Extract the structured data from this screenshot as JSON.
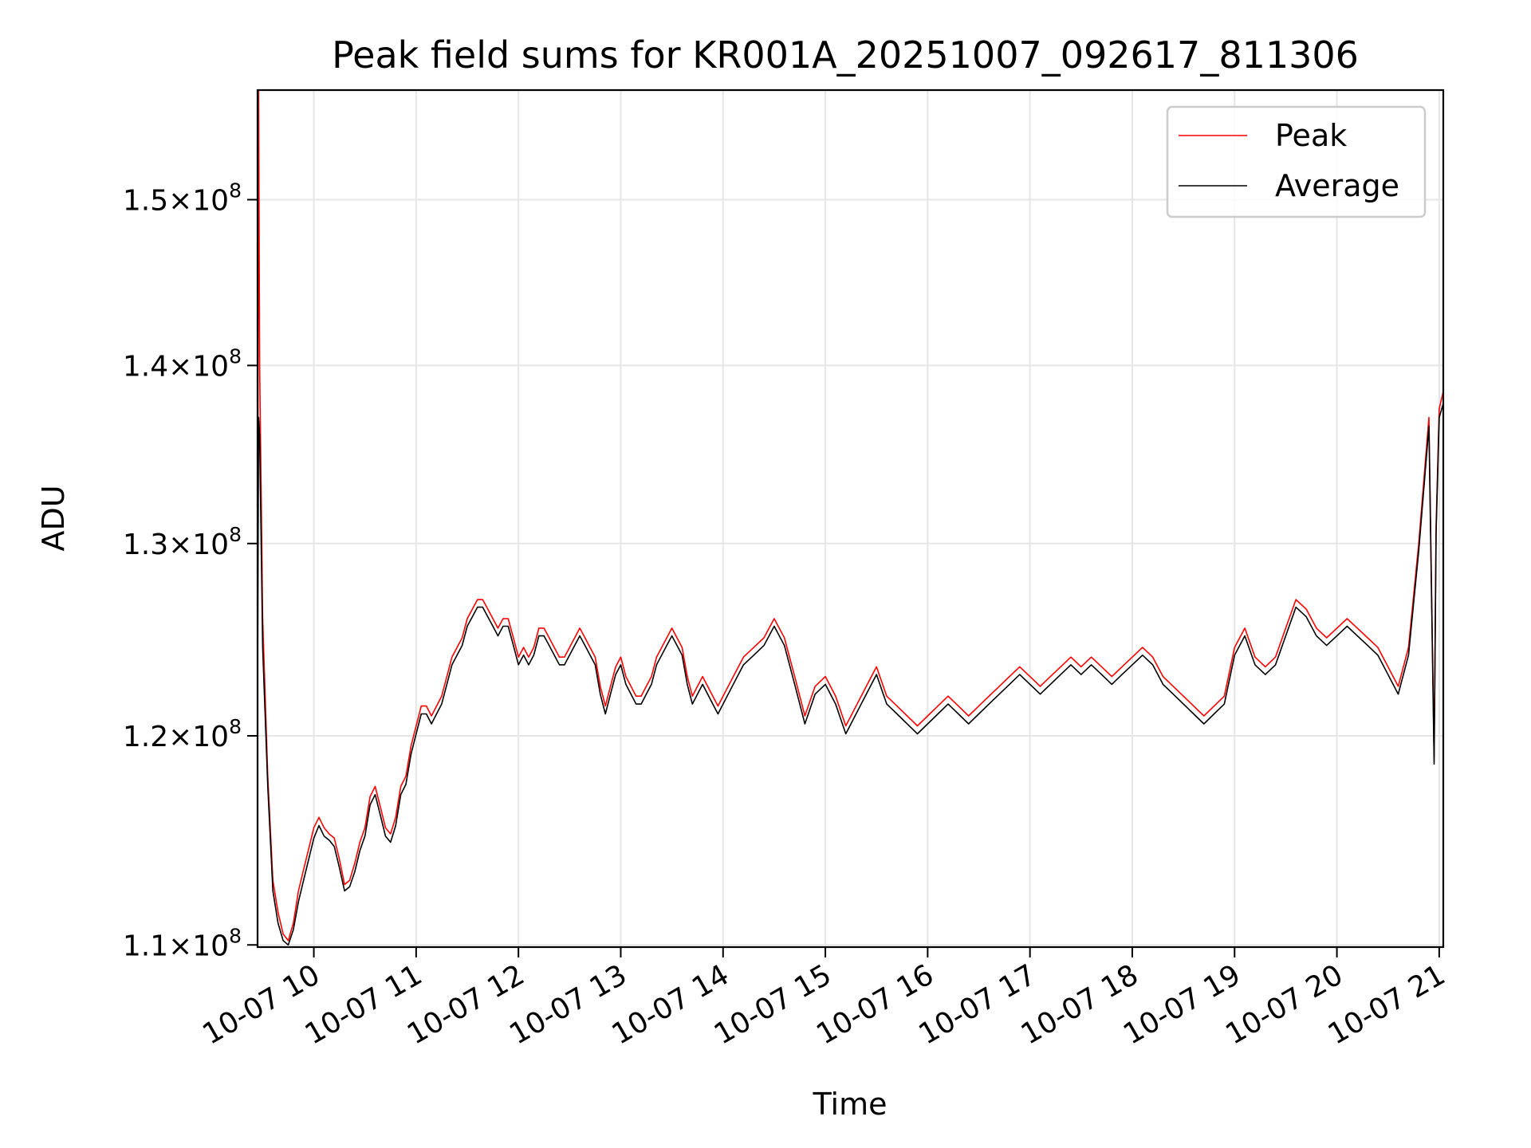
{
  "chart_data": {
    "type": "line",
    "title": "Peak field sums for KR001A_20251007_092617_811306",
    "xlabel": "Time",
    "ylabel": "ADU",
    "x_unit": "hours on 2025-10-07",
    "x_range": [
      9.45,
      21.04
    ],
    "ylim": [
      109900000,
      157000000
    ],
    "y_scale": "log",
    "grid": true,
    "legend_position": "top-right",
    "x_ticks": [
      {
        "value": 10,
        "label": "10-07 10"
      },
      {
        "value": 11,
        "label": "10-07 11"
      },
      {
        "value": 12,
        "label": "10-07 12"
      },
      {
        "value": 13,
        "label": "10-07 13"
      },
      {
        "value": 14,
        "label": "10-07 14"
      },
      {
        "value": 15,
        "label": "10-07 15"
      },
      {
        "value": 16,
        "label": "10-07 16"
      },
      {
        "value": 17,
        "label": "10-07 17"
      },
      {
        "value": 18,
        "label": "10-07 18"
      },
      {
        "value": 19,
        "label": "10-07 19"
      },
      {
        "value": 20,
        "label": "10-07 20"
      },
      {
        "value": 21,
        "label": "10-07 21"
      }
    ],
    "y_ticks": [
      {
        "value": 110000000,
        "mantissa": "1.1",
        "exponent": "8"
      },
      {
        "value": 120000000,
        "mantissa": "1.2",
        "exponent": "8"
      },
      {
        "value": 130000000,
        "mantissa": "1.3",
        "exponent": "8"
      },
      {
        "value": 140000000,
        "mantissa": "1.4",
        "exponent": "8"
      },
      {
        "value": 150000000,
        "mantissa": "1.5",
        "exponent": "8"
      }
    ],
    "series": [
      {
        "name": "Peak",
        "color": "#ff0000",
        "x": [
          9.45,
          9.46,
          9.47,
          9.5,
          9.55,
          9.6,
          9.65,
          9.7,
          9.75,
          9.8,
          9.85,
          9.9,
          9.95,
          10.0,
          10.05,
          10.1,
          10.15,
          10.2,
          10.25,
          10.3,
          10.35,
          10.4,
          10.45,
          10.5,
          10.55,
          10.6,
          10.65,
          10.7,
          10.75,
          10.8,
          10.85,
          10.9,
          10.95,
          11.0,
          11.05,
          11.1,
          11.15,
          11.2,
          11.25,
          11.3,
          11.35,
          11.4,
          11.45,
          11.5,
          11.55,
          11.6,
          11.65,
          11.7,
          11.75,
          11.8,
          11.85,
          11.9,
          11.95,
          12.0,
          12.05,
          12.1,
          12.15,
          12.2,
          12.25,
          12.3,
          12.35,
          12.4,
          12.45,
          12.5,
          12.55,
          12.6,
          12.65,
          12.7,
          12.75,
          12.8,
          12.85,
          12.9,
          12.95,
          13.0,
          13.05,
          13.1,
          13.15,
          13.2,
          13.25,
          13.3,
          13.35,
          13.4,
          13.45,
          13.5,
          13.55,
          13.6,
          13.65,
          13.7,
          13.75,
          13.8,
          13.85,
          13.9,
          13.95,
          14.0,
          14.1,
          14.2,
          14.3,
          14.4,
          14.5,
          14.6,
          14.7,
          14.8,
          14.9,
          15.0,
          15.1,
          15.2,
          15.3,
          15.4,
          15.5,
          15.6,
          15.7,
          15.8,
          15.9,
          16.0,
          16.1,
          16.2,
          16.3,
          16.4,
          16.5,
          16.6,
          16.7,
          16.8,
          16.9,
          17.0,
          17.1,
          17.2,
          17.3,
          17.4,
          17.5,
          17.6,
          17.7,
          17.8,
          17.9,
          18.0,
          18.1,
          18.2,
          18.3,
          18.4,
          18.5,
          18.6,
          18.7,
          18.8,
          18.9,
          19.0,
          19.1,
          19.2,
          19.3,
          19.4,
          19.5,
          19.6,
          19.7,
          19.8,
          19.9,
          20.0,
          20.1,
          20.2,
          20.3,
          20.4,
          20.5,
          20.6,
          20.7,
          20.8,
          20.9,
          20.95,
          20.97,
          21.0,
          21.04
        ],
        "y": [
          126000000,
          157000000,
          140000000,
          126000000,
          118000000,
          113000000,
          111500000,
          110500000,
          110200000,
          111000000,
          112500000,
          113500000,
          114500000,
          115500000,
          116000000,
          115500000,
          115200000,
          115000000,
          114000000,
          112800000,
          113000000,
          113800000,
          114800000,
          115500000,
          117000000,
          117500000,
          116500000,
          115500000,
          115200000,
          116000000,
          117500000,
          118000000,
          119500000,
          120500000,
          121500000,
          121500000,
          121000000,
          121500000,
          122000000,
          123000000,
          124000000,
          124500000,
          125000000,
          126000000,
          126500000,
          127000000,
          127000000,
          126500000,
          126000000,
          125500000,
          126000000,
          126000000,
          125000000,
          124000000,
          124500000,
          124000000,
          124500000,
          125500000,
          125500000,
          125000000,
          124500000,
          124000000,
          124000000,
          124500000,
          125000000,
          125500000,
          125000000,
          124500000,
          124000000,
          122500000,
          121500000,
          122500000,
          123500000,
          124000000,
          123000000,
          122500000,
          122000000,
          122000000,
          122500000,
          123000000,
          124000000,
          124500000,
          125000000,
          125500000,
          125000000,
          124500000,
          123000000,
          122000000,
          122500000,
          123000000,
          122500000,
          122000000,
          121500000,
          122000000,
          123000000,
          124000000,
          124500000,
          125000000,
          126000000,
          125000000,
          123000000,
          121000000,
          122500000,
          123000000,
          122000000,
          120500000,
          121500000,
          122500000,
          123500000,
          122000000,
          121500000,
          121000000,
          120500000,
          121000000,
          121500000,
          122000000,
          121500000,
          121000000,
          121500000,
          122000000,
          122500000,
          123000000,
          123500000,
          123000000,
          122500000,
          123000000,
          123500000,
          124000000,
          123500000,
          124000000,
          123500000,
          123000000,
          123500000,
          124000000,
          124500000,
          124000000,
          123000000,
          122500000,
          122000000,
          121500000,
          121000000,
          121500000,
          122000000,
          124500000,
          125500000,
          124000000,
          123500000,
          124000000,
          125500000,
          127000000,
          126500000,
          125500000,
          125000000,
          125500000,
          126000000,
          125500000,
          125000000,
          124500000,
          123500000,
          122500000,
          124500000,
          130000000,
          137000000,
          119000000,
          131000000,
          137500000,
          138500000
        ]
      },
      {
        "name": "Average",
        "color": "#000000",
        "x": [
          9.45,
          9.46,
          9.47,
          9.5,
          9.55,
          9.6,
          9.65,
          9.7,
          9.75,
          9.8,
          9.85,
          9.9,
          9.95,
          10.0,
          10.05,
          10.1,
          10.15,
          10.2,
          10.25,
          10.3,
          10.35,
          10.4,
          10.45,
          10.5,
          10.55,
          10.6,
          10.65,
          10.7,
          10.75,
          10.8,
          10.85,
          10.9,
          10.95,
          11.0,
          11.05,
          11.1,
          11.15,
          11.2,
          11.25,
          11.3,
          11.35,
          11.4,
          11.45,
          11.5,
          11.55,
          11.6,
          11.65,
          11.7,
          11.75,
          11.8,
          11.85,
          11.9,
          11.95,
          12.0,
          12.05,
          12.1,
          12.15,
          12.2,
          12.25,
          12.3,
          12.35,
          12.4,
          12.45,
          12.5,
          12.55,
          12.6,
          12.65,
          12.7,
          12.75,
          12.8,
          12.85,
          12.9,
          12.95,
          13.0,
          13.05,
          13.1,
          13.15,
          13.2,
          13.25,
          13.3,
          13.35,
          13.4,
          13.45,
          13.5,
          13.55,
          13.6,
          13.65,
          13.7,
          13.75,
          13.8,
          13.85,
          13.9,
          13.95,
          14.0,
          14.1,
          14.2,
          14.3,
          14.4,
          14.5,
          14.6,
          14.7,
          14.8,
          14.9,
          15.0,
          15.1,
          15.2,
          15.3,
          15.4,
          15.5,
          15.6,
          15.7,
          15.8,
          15.9,
          16.0,
          16.1,
          16.2,
          16.3,
          16.4,
          16.5,
          16.6,
          16.7,
          16.8,
          16.9,
          17.0,
          17.1,
          17.2,
          17.3,
          17.4,
          17.5,
          17.6,
          17.7,
          17.8,
          17.9,
          18.0,
          18.1,
          18.2,
          18.3,
          18.4,
          18.5,
          18.6,
          18.7,
          18.8,
          18.9,
          19.0,
          19.1,
          19.2,
          19.3,
          19.4,
          19.5,
          19.6,
          19.7,
          19.8,
          19.9,
          20.0,
          20.1,
          20.2,
          20.3,
          20.4,
          20.5,
          20.6,
          20.7,
          20.8,
          20.9,
          20.95,
          20.97,
          21.0,
          21.04
        ],
        "y": [
          122000000,
          137000000,
          136000000,
          124500000,
          117500000,
          112500000,
          111000000,
          110200000,
          110000000,
          110700000,
          112000000,
          113000000,
          114000000,
          115000000,
          115600000,
          115100000,
          114900000,
          114600000,
          113600000,
          112500000,
          112700000,
          113400000,
          114400000,
          115100000,
          116600000,
          117100000,
          116100000,
          115100000,
          114800000,
          115600000,
          117100000,
          117600000,
          119100000,
          120100000,
          121100000,
          121100000,
          120600000,
          121100000,
          121600000,
          122600000,
          123600000,
          124100000,
          124600000,
          125600000,
          126100000,
          126600000,
          126600000,
          126100000,
          125600000,
          125100000,
          125600000,
          125600000,
          124600000,
          123600000,
          124100000,
          123600000,
          124100000,
          125100000,
          125100000,
          124600000,
          124100000,
          123600000,
          123600000,
          124100000,
          124600000,
          125100000,
          124600000,
          124100000,
          123600000,
          122100000,
          121100000,
          122100000,
          123100000,
          123600000,
          122600000,
          122100000,
          121600000,
          121600000,
          122100000,
          122600000,
          123600000,
          124100000,
          124600000,
          125100000,
          124600000,
          124100000,
          122600000,
          121600000,
          122100000,
          122600000,
          122100000,
          121600000,
          121100000,
          121600000,
          122600000,
          123600000,
          124100000,
          124600000,
          125600000,
          124600000,
          122600000,
          120600000,
          122100000,
          122600000,
          121600000,
          120100000,
          121100000,
          122100000,
          123100000,
          121600000,
          121100000,
          120600000,
          120100000,
          120600000,
          121100000,
          121600000,
          121100000,
          120600000,
          121100000,
          121600000,
          122100000,
          122600000,
          123100000,
          122600000,
          122100000,
          122600000,
          123100000,
          123600000,
          123100000,
          123600000,
          123100000,
          122600000,
          123100000,
          123600000,
          124100000,
          123600000,
          122600000,
          122100000,
          121600000,
          121100000,
          120600000,
          121100000,
          121600000,
          124100000,
          125100000,
          123600000,
          123100000,
          123600000,
          125100000,
          126600000,
          126100000,
          125100000,
          124600000,
          125100000,
          125600000,
          125100000,
          124600000,
          124100000,
          123100000,
          122100000,
          124100000,
          129600000,
          136500000,
          118600000,
          130600000,
          137000000,
          137800000
        ]
      }
    ]
  }
}
